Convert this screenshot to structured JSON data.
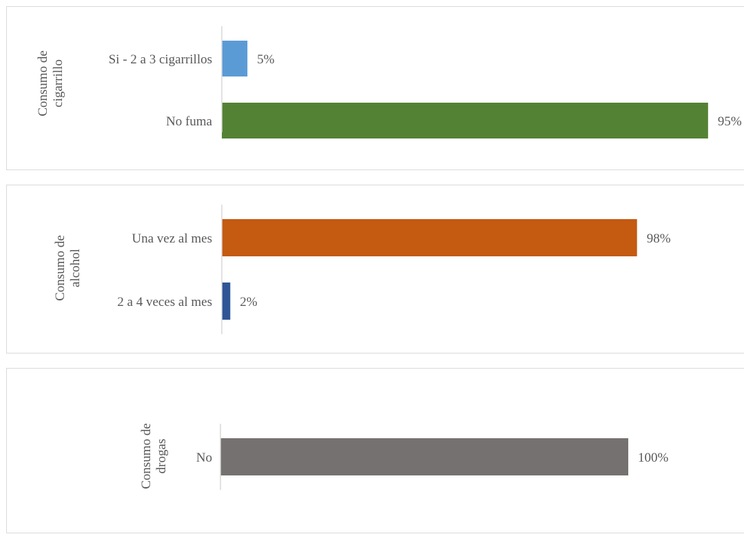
{
  "chart_data": [
    {
      "type": "bar",
      "orientation": "horizontal",
      "group_title_lines": [
        "Consumo de",
        "cigarrillo"
      ],
      "categories": [
        "Si - 2 a 3 cigarrillos",
        "No fuma"
      ],
      "values": [
        5,
        95
      ],
      "value_labels": [
        "5%",
        "95%"
      ],
      "colors": [
        "#5b9bd5",
        "#548235"
      ],
      "xlim": [
        0,
        100
      ],
      "grid": false,
      "legend": "none"
    },
    {
      "type": "bar",
      "orientation": "horizontal",
      "group_title_lines": [
        "Consumo de",
        "alcohol"
      ],
      "categories": [
        "Una vez al mes",
        "2 a 4 veces al mes"
      ],
      "values": [
        98,
        2
      ],
      "value_labels": [
        "98%",
        "2%"
      ],
      "colors": [
        "#c55a11",
        "#2f5597"
      ],
      "xlim": [
        0,
        100
      ],
      "grid": false,
      "legend": "none"
    },
    {
      "type": "bar",
      "orientation": "horizontal",
      "group_title_lines": [
        "Consumo de",
        "drogas"
      ],
      "categories": [
        "No"
      ],
      "values": [
        100
      ],
      "value_labels": [
        "100%"
      ],
      "colors": [
        "#767171"
      ],
      "xlim": [
        0,
        100
      ],
      "grid": false,
      "legend": "none"
    }
  ]
}
